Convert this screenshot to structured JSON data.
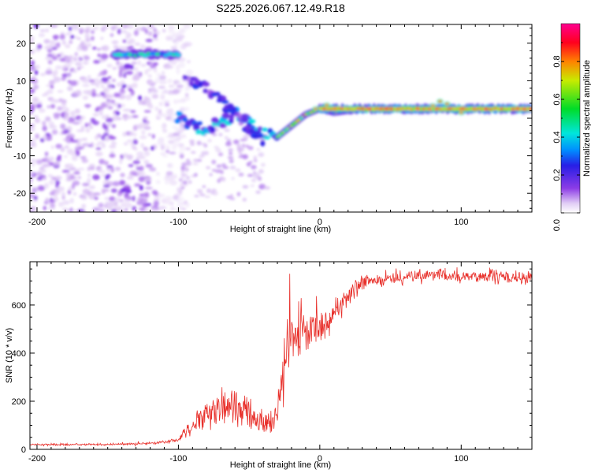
{
  "title": "S225.2026.067.12.49.R18",
  "colors": {
    "snr_line": "#e8302b",
    "spectral_min": "#ffffff",
    "spectral_mid_blue": "#0000ff",
    "spectral_max": "#ff0090"
  },
  "chart_data": [
    {
      "type": "heatmap",
      "name": "spectrogram",
      "xlabel": "Height of straight line (km)",
      "ylabel": "Frequency (Hz)",
      "xlim": [
        -205,
        150
      ],
      "ylim": [
        -25,
        25
      ],
      "xticks": [
        -200,
        -100,
        0,
        100
      ],
      "yticks": [
        -20,
        -10,
        0,
        10,
        20
      ],
      "grid": false,
      "colorbar": {
        "label": "Normalized spectral amplitude",
        "range": [
          0.0,
          1.0
        ],
        "ticks": [
          "0.0",
          "0.2",
          "0.4",
          "0.6",
          "0.8"
        ],
        "tick_values": [
          0.0,
          0.2,
          0.4,
          0.6,
          0.8
        ]
      },
      "features": [
        {
          "name": "noise-region",
          "x_range": [
            -205,
            -100
          ],
          "y_range": [
            -25,
            25
          ],
          "amplitude": "low (scattered)"
        },
        {
          "name": "band-upper",
          "x_range": [
            -145,
            -100
          ],
          "freq_hz": 17,
          "amplitude": 0.3
        },
        {
          "name": "chirp-descending",
          "points": [
            [
              -100,
              0.5
            ],
            [
              -90,
              -2
            ],
            [
              -80,
              -3
            ],
            [
              -70,
              -1
            ],
            [
              -60,
              1
            ],
            [
              -50,
              -1
            ],
            [
              -40,
              -4
            ],
            [
              -30,
              -5
            ]
          ],
          "amplitude": 0.3
        },
        {
          "name": "chirp-diagonal",
          "points": [
            [
              -95,
              11
            ],
            [
              -80,
              8
            ],
            [
              -65,
              3
            ],
            [
              -50,
              -3
            ],
            [
              -40,
              -6
            ]
          ],
          "amplitude": 0.2
        },
        {
          "name": "chirp-tail",
          "points": [
            [
              -60,
              -6
            ],
            [
              -50,
              -12
            ],
            [
              -40,
              -18
            ],
            [
              -35,
              -20
            ]
          ],
          "amplitude": 0.1
        },
        {
          "name": "recovery",
          "points": [
            [
              -30,
              -5
            ],
            [
              -20,
              -2
            ],
            [
              -10,
              1
            ],
            [
              0,
              2.5
            ],
            [
              10,
              1.5
            ],
            [
              20,
              2
            ]
          ],
          "amplitude": 0.5
        },
        {
          "name": "steady-tone",
          "x_range": [
            0,
            150
          ],
          "freq_hz": 2.5,
          "amplitude": 0.75
        }
      ]
    },
    {
      "type": "line",
      "name": "snr",
      "xlabel": "Height of straight line (km)",
      "ylabel": "SNR (10 * v/v)",
      "xlim": [
        -205,
        150
      ],
      "ylim": [
        0,
        780
      ],
      "xticks": [
        -200,
        -100,
        0,
        100
      ],
      "yticks": [
        0,
        200,
        400,
        600
      ],
      "grid": false,
      "series": [
        {
          "name": "SNR",
          "color": "#e8302b",
          "x": [
            -205,
            -150,
            -120,
            -110,
            -100,
            -95,
            -90,
            -85,
            -80,
            -75,
            -70,
            -65,
            -60,
            -55,
            -50,
            -45,
            -40,
            -35,
            -30,
            -27,
            -25,
            -22,
            -20,
            -18,
            -15,
            -12,
            -10,
            -5,
            0,
            5,
            10,
            15,
            20,
            25,
            30,
            35,
            40,
            50,
            60,
            70,
            80,
            90,
            100,
            110,
            120,
            130,
            140,
            150
          ],
          "y": [
            20,
            20,
            25,
            30,
            40,
            70,
            100,
            120,
            140,
            150,
            160,
            170,
            180,
            175,
            160,
            130,
            110,
            100,
            130,
            300,
            350,
            400,
            450,
            460,
            470,
            490,
            480,
            500,
            510,
            540,
            570,
            600,
            630,
            660,
            690,
            700,
            705,
            710,
            715,
            720,
            725,
            720,
            715,
            720,
            720,
            715,
            710,
            715
          ],
          "noise": [
            4,
            4,
            5,
            6,
            10,
            25,
            35,
            45,
            55,
            65,
            70,
            75,
            80,
            80,
            75,
            60,
            55,
            50,
            60,
            120,
            120,
            120,
            110,
            100,
            95,
            90,
            80,
            75,
            70,
            70,
            60,
            55,
            50,
            40,
            35,
            30,
            28,
            28,
            25,
            25,
            25,
            25,
            25,
            25,
            25,
            25,
            25,
            25
          ]
        }
      ]
    }
  ]
}
